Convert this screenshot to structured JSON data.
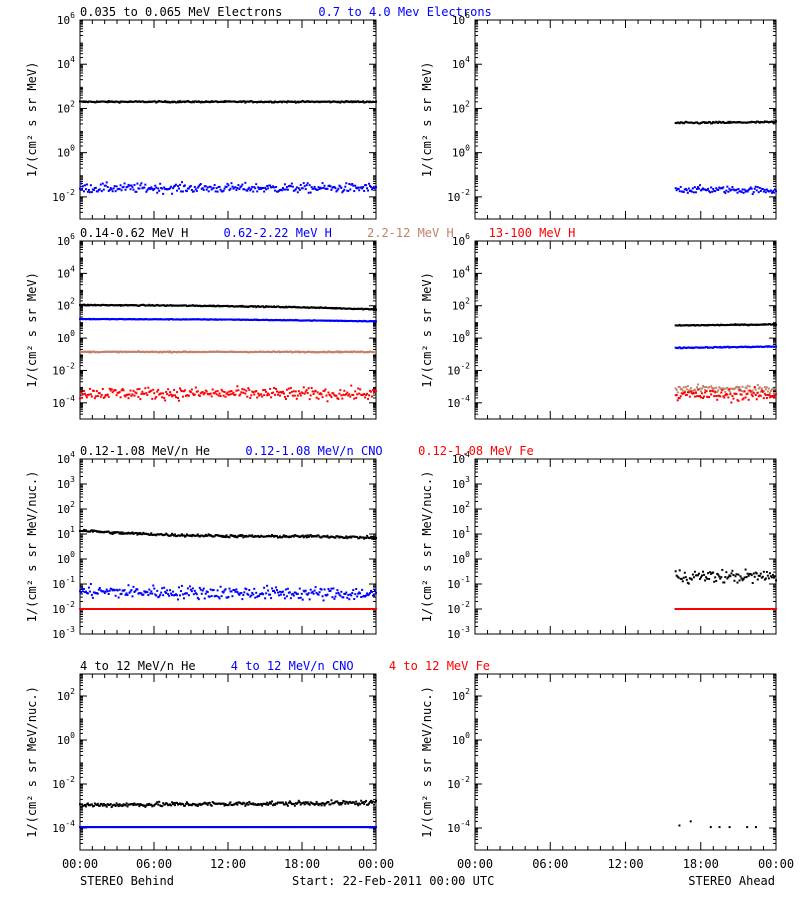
{
  "figure": {
    "footer": {
      "left": "STEREO Behind",
      "center": "Start: 22-Feb-2011 00:00 UTC",
      "right": "STEREO Ahead"
    },
    "colors": {
      "black": "#000000",
      "blue": "#0000ff",
      "tan": "#c0826a",
      "red": "#ff0000"
    }
  },
  "chart_data": [
    {
      "type": "scatter",
      "id": "electrons",
      "spacecraft": "STEREO Behind",
      "legend": [
        {
          "text": "0.035 to 0.065 MeV Electrons",
          "color": "black"
        },
        {
          "text": "0.7 to 4.0 Mev Electrons",
          "color": "blue"
        }
      ],
      "ylabel": "1/(cm² s sr MeV)",
      "yscale": "log",
      "ylim": [
        0.001,
        1000000
      ],
      "yticks": [
        {
          "v": 0.01,
          "m": "10",
          "e": "-2"
        },
        {
          "v": 1,
          "m": "10",
          "e": "0"
        },
        {
          "v": 100,
          "m": "10",
          "e": "2"
        },
        {
          "v": 10000,
          "m": "10",
          "e": "4"
        },
        {
          "v": 1000000,
          "m": "10",
          "e": "6"
        }
      ],
      "xlim": [
        0,
        24
      ],
      "xticks": [
        "00:00",
        "06:00",
        "12:00",
        "18:00",
        "00:00"
      ],
      "series": [
        {
          "color": "black",
          "x": [
            0,
            24
          ],
          "y": [
            200,
            200
          ],
          "scatter": 0.03
        },
        {
          "color": "blue",
          "x": [
            0,
            24
          ],
          "y": [
            0.025,
            0.025
          ],
          "scatter": 0.2
        }
      ]
    },
    {
      "type": "scatter",
      "id": "electrons-ahead",
      "spacecraft": "STEREO Ahead",
      "ylabel": "1/(cm² s sr MeV)",
      "yscale": "log",
      "ylim": [
        0.001,
        1000000
      ],
      "yticks": [
        {
          "v": 0.01,
          "m": "10",
          "e": "-2"
        },
        {
          "v": 1,
          "m": "10",
          "e": "0"
        },
        {
          "v": 100,
          "m": "10",
          "e": "2"
        },
        {
          "v": 10000,
          "m": "10",
          "e": "4"
        },
        {
          "v": 1000000,
          "m": "10",
          "e": "6"
        }
      ],
      "xlim": [
        0,
        24
      ],
      "xticks": [
        "00:00",
        "06:00",
        "12:00",
        "18:00",
        "00:00"
      ],
      "series": [
        {
          "color": "black",
          "x": [
            16,
            24
          ],
          "y": [
            22,
            24
          ],
          "scatter": 0.04
        },
        {
          "color": "blue",
          "x": [
            16,
            24
          ],
          "y": [
            0.022,
            0.02
          ],
          "scatter": 0.15
        }
      ]
    },
    {
      "type": "scatter",
      "id": "protons",
      "spacecraft": "STEREO Behind",
      "legend": [
        {
          "text": "0.14-0.62 MeV H",
          "color": "black"
        },
        {
          "text": "0.62-2.22 MeV H",
          "color": "blue"
        },
        {
          "text": "2.2-12 MeV H",
          "color": "tan"
        },
        {
          "text": "13-100 MeV H",
          "color": "red"
        }
      ],
      "ylabel": "1/(cm² s sr MeV)",
      "yscale": "log",
      "ylim": [
        1e-05,
        1000000
      ],
      "yticks": [
        {
          "v": 0.0001,
          "m": "10",
          "e": "-4"
        },
        {
          "v": 0.01,
          "m": "10",
          "e": "-2"
        },
        {
          "v": 1,
          "m": "10",
          "e": "0"
        },
        {
          "v": 100,
          "m": "10",
          "e": "2"
        },
        {
          "v": 10000,
          "m": "10",
          "e": "4"
        },
        {
          "v": 1000000,
          "m": "10",
          "e": "6"
        }
      ],
      "xlim": [
        0,
        24
      ],
      "xticks": [
        "00:00",
        "06:00",
        "12:00",
        "18:00",
        "00:00"
      ],
      "series": [
        {
          "color": "black",
          "x": [
            0,
            6,
            12,
            18,
            24
          ],
          "y": [
            110,
            105,
            95,
            80,
            60
          ],
          "scatter": 0.03
        },
        {
          "color": "blue",
          "x": [
            0,
            12,
            24
          ],
          "y": [
            15,
            14,
            11
          ],
          "scatter": 0.02
        },
        {
          "color": "tan",
          "x": [
            0,
            24
          ],
          "y": [
            0.14,
            0.14
          ],
          "scatter": 0.03
        },
        {
          "color": "red",
          "x": [
            0,
            24
          ],
          "y": [
            0.0004,
            0.00035
          ],
          "scatter": 0.35
        }
      ]
    },
    {
      "type": "scatter",
      "id": "protons-ahead",
      "spacecraft": "STEREO Ahead",
      "ylabel": "1/(cm² s sr MeV)",
      "yscale": "log",
      "ylim": [
        1e-05,
        1000000
      ],
      "yticks": [
        {
          "v": 0.0001,
          "m": "10",
          "e": "-4"
        },
        {
          "v": 0.01,
          "m": "10",
          "e": "-2"
        },
        {
          "v": 1,
          "m": "10",
          "e": "0"
        },
        {
          "v": 100,
          "m": "10",
          "e": "2"
        },
        {
          "v": 10000,
          "m": "10",
          "e": "4"
        },
        {
          "v": 1000000,
          "m": "10",
          "e": "6"
        }
      ],
      "xlim": [
        0,
        24
      ],
      "xticks": [
        "00:00",
        "06:00",
        "12:00",
        "18:00",
        "00:00"
      ],
      "series": [
        {
          "color": "black",
          "x": [
            16,
            24
          ],
          "y": [
            6,
            7
          ],
          "scatter": 0.03
        },
        {
          "color": "blue",
          "x": [
            16,
            24
          ],
          "y": [
            0.25,
            0.3
          ],
          "scatter": 0.03
        },
        {
          "color": "tan",
          "x": [
            16,
            24
          ],
          "y": [
            0.0007,
            0.0007
          ],
          "scatter": 0.25
        },
        {
          "color": "red",
          "x": [
            16,
            24
          ],
          "y": [
            0.0003,
            0.0003
          ],
          "scatter": 0.35
        }
      ]
    },
    {
      "type": "scatter",
      "id": "heavy-low",
      "spacecraft": "STEREO Behind",
      "legend": [
        {
          "text": "0.12-1.08 MeV/n He",
          "color": "black"
        },
        {
          "text": "0.12-1.08 MeV/n CNO",
          "color": "blue"
        },
        {
          "text": "0.12-1.08 MeV Fe",
          "color": "red"
        }
      ],
      "ylabel": "1/(cm² s sr MeV/nuc.)",
      "yscale": "log",
      "ylim": [
        0.001,
        10000
      ],
      "yticks": [
        {
          "v": 0.001,
          "m": "10",
          "e": "-3"
        },
        {
          "v": 0.01,
          "m": "10",
          "e": "-2"
        },
        {
          "v": 0.1,
          "m": "10",
          "e": "-1"
        },
        {
          "v": 1,
          "m": "10",
          "e": "0"
        },
        {
          "v": 10,
          "m": "10",
          "e": "1"
        },
        {
          "v": 100,
          "m": "10",
          "e": "2"
        },
        {
          "v": 1000,
          "m": "10",
          "e": "3"
        },
        {
          "v": 10000,
          "m": "10",
          "e": "4"
        }
      ],
      "xlim": [
        0,
        24
      ],
      "xticks": [
        "00:00",
        "06:00",
        "12:00",
        "18:00",
        "00:00"
      ],
      "series": [
        {
          "color": "black",
          "x": [
            0,
            3,
            8,
            14,
            20,
            24
          ],
          "y": [
            14,
            11,
            9,
            8,
            8,
            7
          ],
          "scatter": 0.05
        },
        {
          "color": "blue",
          "x": [
            0,
            24
          ],
          "y": [
            0.05,
            0.04
          ],
          "scatter": 0.25
        },
        {
          "color": "red",
          "x": [
            0,
            24
          ],
          "y": [
            0.01,
            0.01
          ],
          "scatter": 0
        }
      ]
    },
    {
      "type": "scatter",
      "id": "heavy-low-ahead",
      "spacecraft": "STEREO Ahead",
      "ylabel": "1/(cm² s sr MeV/nuc.)",
      "yscale": "log",
      "ylim": [
        0.001,
        10000
      ],
      "yticks": [
        {
          "v": 0.001,
          "m": "10",
          "e": "-3"
        },
        {
          "v": 0.01,
          "m": "10",
          "e": "-2"
        },
        {
          "v": 0.1,
          "m": "10",
          "e": "-1"
        },
        {
          "v": 1,
          "m": "10",
          "e": "0"
        },
        {
          "v": 10,
          "m": "10",
          "e": "1"
        },
        {
          "v": 100,
          "m": "10",
          "e": "2"
        },
        {
          "v": 1000,
          "m": "10",
          "e": "3"
        },
        {
          "v": 10000,
          "m": "10",
          "e": "4"
        }
      ],
      "xlim": [
        0,
        24
      ],
      "xticks": [
        "00:00",
        "06:00",
        "12:00",
        "18:00",
        "00:00"
      ],
      "series": [
        {
          "color": "black",
          "x": [
            16,
            24
          ],
          "y": [
            0.2,
            0.2
          ],
          "scatter": 0.25
        },
        {
          "color": "blue",
          "x": [
            16,
            24
          ],
          "y": [
            0.01,
            0.01
          ],
          "scatter": 0
        },
        {
          "color": "red",
          "x": [
            16,
            24
          ],
          "y": [
            0.01,
            0.01
          ],
          "scatter": 0
        }
      ]
    },
    {
      "type": "scatter",
      "id": "heavy-high",
      "spacecraft": "STEREO Behind",
      "legend": [
        {
          "text": "4 to 12 MeV/n He",
          "color": "black"
        },
        {
          "text": "4 to 12 MeV/n CNO",
          "color": "blue"
        },
        {
          "text": "4 to 12 MeV Fe",
          "color": "red"
        }
      ],
      "ylabel": "1/(cm² s sr MeV/nuc.)",
      "yscale": "log",
      "ylim": [
        1e-05,
        1000
      ],
      "yticks": [
        {
          "v": 0.0001,
          "m": "10",
          "e": "-4"
        },
        {
          "v": 0.01,
          "m": "10",
          "e": "-2"
        },
        {
          "v": 1,
          "m": "10",
          "e": "0"
        },
        {
          "v": 100,
          "m": "10",
          "e": "2"
        }
      ],
      "xlim": [
        0,
        24
      ],
      "xticks": [
        "00:00",
        "06:00",
        "12:00",
        "18:00",
        "00:00"
      ],
      "series": [
        {
          "color": "black",
          "x": [
            0,
            24
          ],
          "y": [
            0.0011,
            0.0014
          ],
          "scatter": 0.1
        },
        {
          "color": "blue",
          "x": [
            0,
            24
          ],
          "y": [
            0.00011,
            0.00011
          ],
          "scatter": 0
        }
      ]
    },
    {
      "type": "scatter",
      "id": "heavy-high-ahead",
      "spacecraft": "STEREO Ahead",
      "ylabel": "1/(cm² s sr MeV/nuc.)",
      "yscale": "log",
      "ylim": [
        1e-05,
        1000
      ],
      "yticks": [
        {
          "v": 0.0001,
          "m": "10",
          "e": "-4"
        },
        {
          "v": 0.01,
          "m": "10",
          "e": "-2"
        },
        {
          "v": 1,
          "m": "10",
          "e": "0"
        },
        {
          "v": 100,
          "m": "10",
          "e": "2"
        }
      ],
      "xlim": [
        0,
        24
      ],
      "xticks": [
        "00:00",
        "06:00",
        "12:00",
        "18:00",
        "00:00"
      ],
      "series": [
        {
          "color": "black",
          "x": [
            16.3,
            17.2,
            18.8,
            19.5,
            20.3,
            21.7,
            22.4
          ],
          "y": [
            0.00013,
            0.0002,
            0.00011,
            0.00011,
            0.00011,
            0.00011,
            0.00011
          ],
          "scatter": 0
        }
      ]
    }
  ]
}
